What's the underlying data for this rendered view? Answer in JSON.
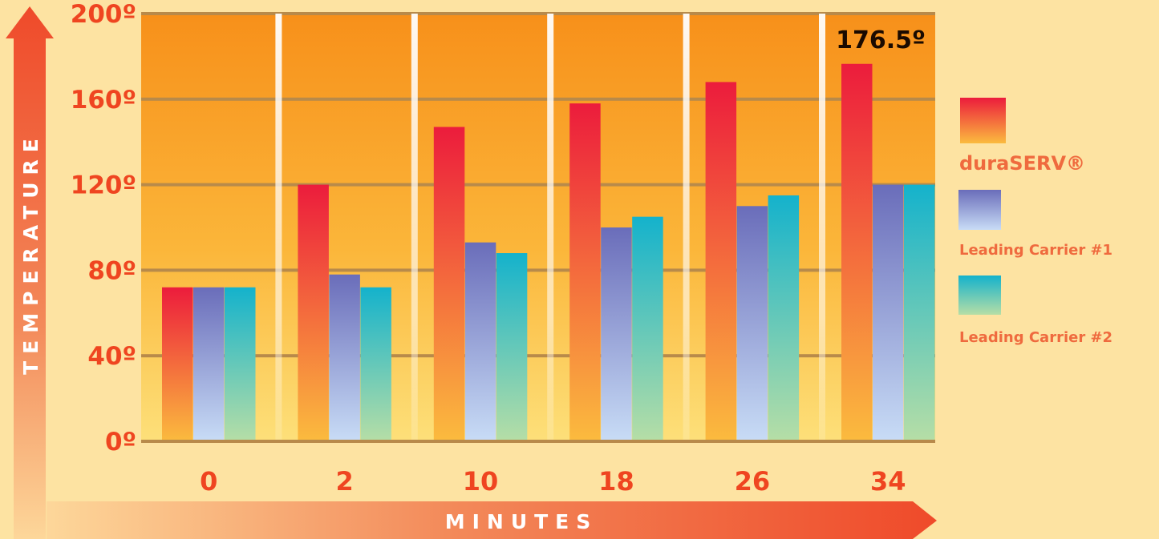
{
  "chart_data": {
    "type": "bar",
    "title": "",
    "xlabel": "MINUTES",
    "ylabel": "TEMPERATURE",
    "categories": [
      "0",
      "2",
      "10",
      "18",
      "26",
      "34"
    ],
    "series": [
      {
        "name": "duraSERV®",
        "values": [
          72,
          120,
          147,
          158,
          168,
          176.5
        ]
      },
      {
        "name": "Leading Carrier #1",
        "values": [
          72,
          78,
          93,
          100,
          110,
          120
        ]
      },
      {
        "name": "Leading Carrier #2",
        "values": [
          72,
          72,
          88,
          105,
          115,
          120
        ]
      }
    ],
    "ylim": [
      0,
      200
    ],
    "yticks": [
      0,
      40,
      80,
      120,
      160,
      200
    ],
    "ytick_labels": [
      "0º",
      "40º",
      "80º",
      "120º",
      "160º",
      "200º"
    ],
    "grid": true,
    "legend": "right",
    "annotation": {
      "text": "176.5º",
      "category": "34",
      "series": "duraSERV®"
    },
    "colors": {
      "background": "#FDE3A2",
      "tick_text": "#EF4520",
      "legend_text": "#EF6A3E",
      "callout_text": "#1A0A00",
      "gridline": "#B88A4A",
      "duraserv_top": "#EC1C3C",
      "duraserv_bottom": "#FBBB3E",
      "carrier1_top": "#6A6DBA",
      "carrier1_bottom": "#C8DCF6",
      "carrier2_top": "#14B2CC",
      "carrier2_bottom": "#B6DEA6"
    }
  }
}
